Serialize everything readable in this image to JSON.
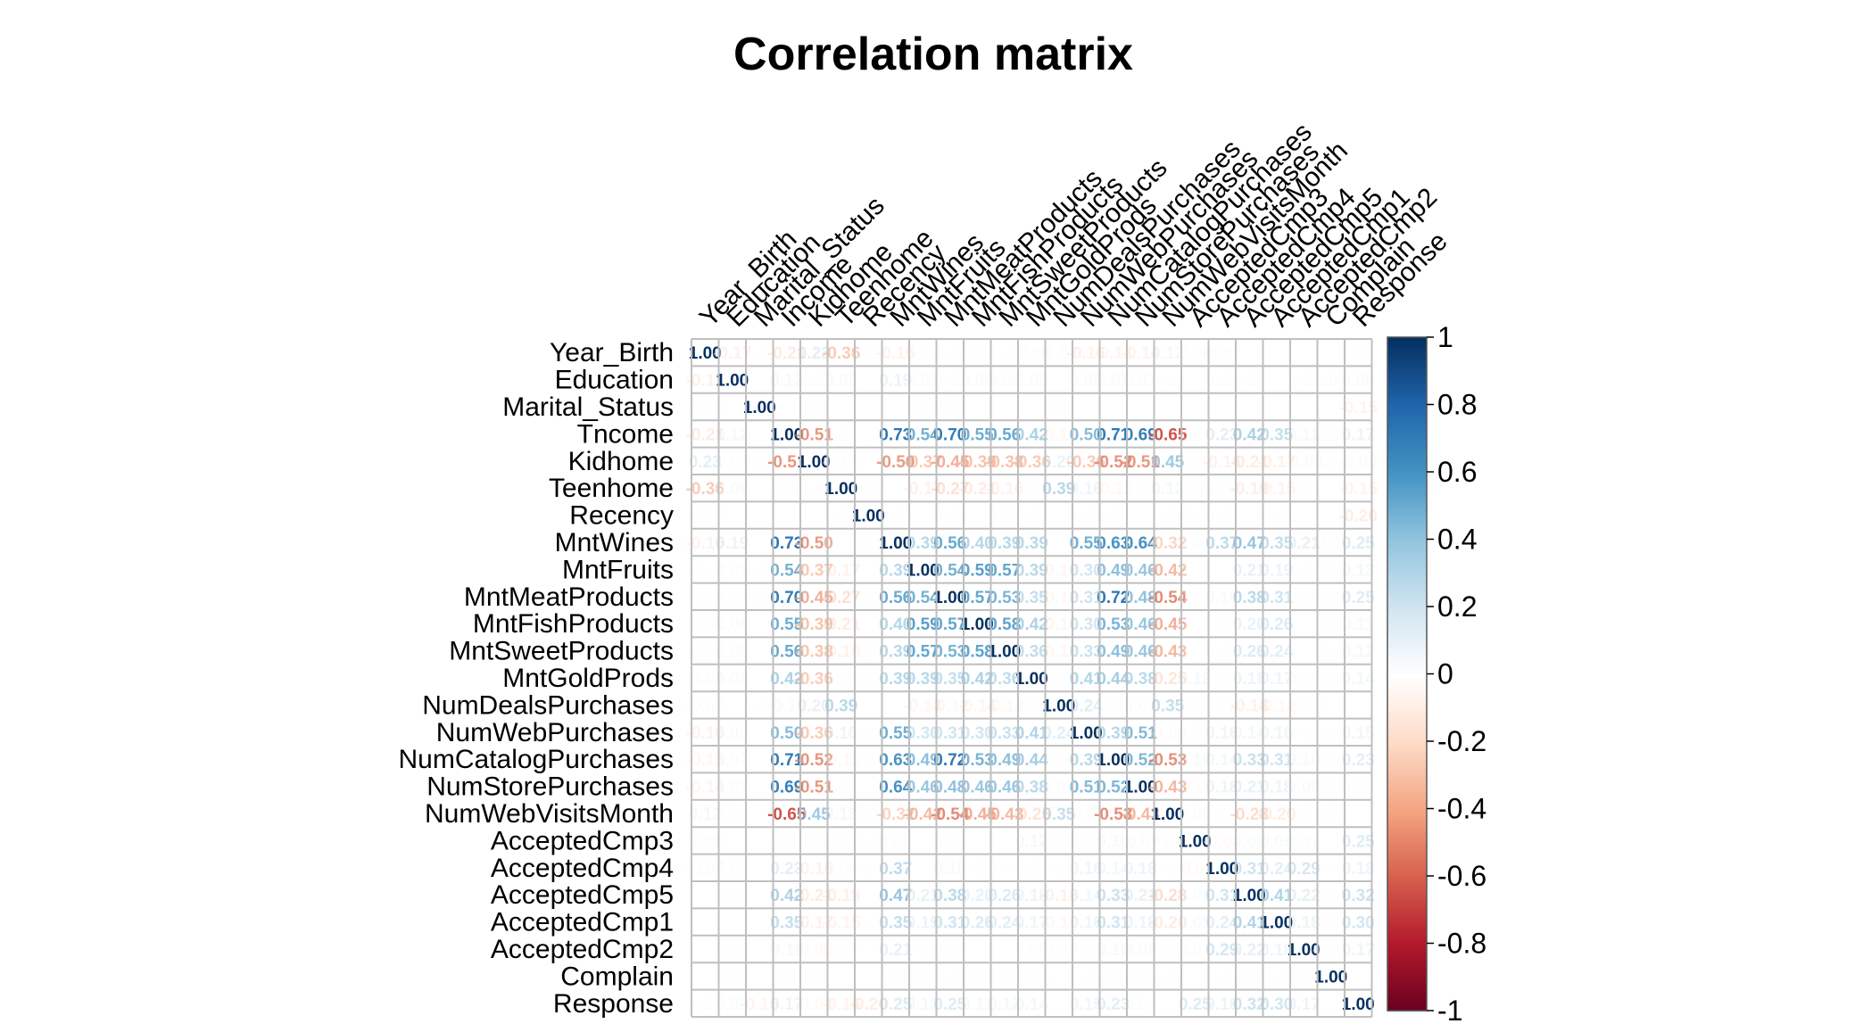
{
  "chart_data": {
    "type": "heatmap",
    "title": "Correlation matrix",
    "variables": [
      "Year_Birth",
      "Education",
      "Marital_Status",
      "Income",
      "Kidhome",
      "Teenhome",
      "Recency",
      "MntWines",
      "MntFruits",
      "MntMeatProducts",
      "MntFishProducts",
      "MntSweetProducts",
      "MntGoldProds",
      "NumDealsPurchases",
      "NumWebPurchases",
      "NumCatalogPurchases",
      "NumStorePurchases",
      "NumWebVisitsMonth",
      "AcceptedCmp3",
      "AcceptedCmp4",
      "AcceptedCmp5",
      "AcceptedCmp1",
      "AcceptedCmp2",
      "Complain",
      "Response"
    ],
    "row_labels": [
      "Year_Birth",
      "Education",
      "Marital_Status",
      "Tncome",
      "Kidhome",
      "Teenhome",
      "Recency",
      "MntWines",
      "MntFruits",
      "MntMeatProducts",
      "MntFishProducts",
      "MntSweetProducts",
      "MntGoldProds",
      "NumDealsPurchases",
      "NumWebPurchases",
      "NumCatalogPurchases",
      "NumStorePurchases",
      "NumWebVisitsMonth",
      "AcceptedCmp3",
      "AcceptedCmp4",
      "AcceptedCmp5",
      "AcceptedCmp1",
      "AcceptedCmp2",
      "Complain",
      "Response"
    ],
    "matrix": [
      [
        1.0,
        -0.17,
        0.02,
        -0.21,
        0.23,
        -0.36,
        -0.02,
        -0.16,
        -0.02,
        -0.03,
        -0.04,
        -0.02,
        -0.06,
        -0.07,
        -0.16,
        -0.13,
        -0.14,
        0.12,
        0.06,
        -0.07,
        0.01,
        0.01,
        0.01,
        0.0,
        0.02
      ],
      [
        -0.17,
        1.0,
        0.01,
        0.12,
        0.05,
        0.09,
        0.0,
        0.19,
        0.07,
        0.03,
        0.08,
        0.06,
        0.08,
        0.01,
        0.09,
        0.07,
        0.07,
        0.02,
        0.01,
        0.05,
        0.03,
        0.01,
        0.02,
        0.04,
        0.08
      ],
      [
        0.02,
        0.01,
        1.0,
        0.01,
        0.02,
        0.01,
        0.0,
        0.01,
        0.02,
        0.02,
        0.01,
        0.01,
        0.01,
        0.02,
        0.01,
        0.01,
        0.01,
        0.01,
        0.01,
        0.01,
        0.01,
        0.01,
        0.01,
        0.01,
        -0.15
      ],
      [
        -0.21,
        0.12,
        0.01,
        1.0,
        -0.51,
        0.03,
        0.01,
        0.73,
        0.54,
        0.7,
        0.55,
        0.56,
        0.42,
        -0.1,
        0.5,
        0.71,
        0.69,
        -0.65,
        -0.02,
        0.23,
        0.42,
        0.35,
        0.11,
        -0.03,
        0.17
      ],
      [
        0.23,
        0.05,
        0.02,
        -0.51,
        1.0,
        -0.04,
        0.01,
        -0.5,
        -0.37,
        -0.45,
        -0.39,
        -0.38,
        -0.36,
        0.2,
        -0.36,
        -0.52,
        -0.51,
        0.45,
        0.02,
        -0.16,
        -0.21,
        -0.17,
        -0.08,
        0.04,
        -0.08
      ],
      [
        -0.36,
        0.09,
        0.01,
        0.03,
        -0.04,
        1.0,
        0.02,
        0.01,
        -0.17,
        -0.27,
        -0.21,
        -0.16,
        -0.02,
        0.39,
        0.16,
        -0.11,
        0.05,
        0.13,
        -0.04,
        0.04,
        -0.19,
        -0.15,
        -0.02,
        0.01,
        -0.15
      ],
      [
        -0.02,
        0.0,
        0.0,
        0.01,
        0.01,
        0.02,
        1.0,
        0.02,
        0.01,
        0.02,
        0.0,
        0.02,
        0.02,
        0.0,
        -0.01,
        0.03,
        0.0,
        -0.02,
        -0.03,
        0.02,
        0.0,
        -0.02,
        0.0,
        0.01,
        -0.2
      ],
      [
        -0.16,
        0.19,
        0.01,
        0.73,
        -0.5,
        0.01,
        0.02,
        1.0,
        0.39,
        0.56,
        0.4,
        0.39,
        0.39,
        0.01,
        0.55,
        0.63,
        0.64,
        -0.32,
        0.06,
        0.37,
        0.47,
        0.35,
        0.21,
        -0.04,
        0.25
      ],
      [
        -0.02,
        0.07,
        0.02,
        0.54,
        -0.37,
        -0.17,
        0.01,
        0.39,
        1.0,
        0.54,
        0.59,
        0.57,
        0.39,
        -0.13,
        0.3,
        0.49,
        0.46,
        -0.42,
        0.01,
        0.01,
        0.21,
        0.19,
        -0.01,
        -0.01,
        0.13
      ],
      [
        -0.03,
        0.03,
        0.02,
        0.7,
        -0.45,
        -0.27,
        0.02,
        0.56,
        0.54,
        1.0,
        0.57,
        0.53,
        0.35,
        -0.12,
        0.31,
        0.72,
        0.48,
        -0.54,
        0.02,
        0.1,
        0.38,
        0.31,
        0.04,
        -0.02,
        0.25
      ],
      [
        -0.04,
        0.08,
        0.01,
        0.55,
        -0.39,
        -0.21,
        0.0,
        0.4,
        0.59,
        0.57,
        1.0,
        0.58,
        0.42,
        -0.14,
        0.3,
        0.53,
        0.46,
        -0.45,
        0.0,
        0.02,
        0.2,
        0.26,
        0.0,
        -0.02,
        0.11
      ],
      [
        -0.02,
        0.06,
        0.01,
        0.56,
        -0.38,
        -0.16,
        0.02,
        0.39,
        0.57,
        0.53,
        0.58,
        1.0,
        0.36,
        -0.12,
        0.33,
        0.49,
        0.46,
        -0.43,
        0.0,
        0.03,
        0.26,
        0.24,
        0.01,
        -0.02,
        0.12
      ],
      [
        -0.06,
        0.08,
        0.01,
        0.42,
        -0.36,
        -0.02,
        0.02,
        0.39,
        0.39,
        0.35,
        0.42,
        0.36,
        1.0,
        0.05,
        0.41,
        0.44,
        0.38,
        -0.25,
        0.12,
        0.02,
        0.18,
        0.17,
        0.05,
        -0.03,
        0.14
      ],
      [
        -0.07,
        0.01,
        0.02,
        -0.1,
        0.2,
        0.39,
        0.0,
        0.01,
        -0.13,
        -0.12,
        -0.14,
        -0.12,
        0.05,
        1.0,
        0.24,
        -0.01,
        0.07,
        0.35,
        -0.02,
        0.02,
        -0.18,
        -0.12,
        -0.04,
        0.0,
        0.0
      ],
      [
        -0.16,
        0.09,
        0.01,
        0.5,
        -0.36,
        0.16,
        -0.01,
        0.55,
        0.3,
        0.31,
        0.3,
        0.33,
        0.41,
        0.24,
        1.0,
        0.39,
        0.51,
        -0.06,
        0.04,
        0.16,
        0.14,
        0.16,
        0.03,
        -0.02,
        0.15
      ],
      [
        -0.13,
        0.07,
        0.01,
        0.71,
        -0.52,
        -0.11,
        0.03,
        0.63,
        0.49,
        0.72,
        0.53,
        0.49,
        0.44,
        -0.01,
        0.39,
        1.0,
        0.52,
        -0.53,
        0.1,
        0.14,
        0.33,
        0.31,
        0.1,
        -0.02,
        0.23
      ],
      [
        -0.14,
        0.07,
        0.01,
        0.69,
        -0.51,
        0.05,
        0.0,
        0.64,
        0.46,
        0.48,
        0.46,
        0.46,
        0.38,
        0.07,
        0.51,
        0.52,
        1.0,
        -0.43,
        -0.07,
        0.18,
        0.21,
        0.18,
        0.09,
        -0.02,
        0.04
      ],
      [
        0.12,
        0.02,
        0.01,
        -0.65,
        0.45,
        0.13,
        -0.02,
        -0.32,
        -0.42,
        -0.54,
        -0.45,
        -0.43,
        -0.25,
        0.35,
        -0.06,
        -0.53,
        -0.43,
        1.0,
        0.06,
        -0.03,
        -0.28,
        -0.2,
        -0.01,
        0.02,
        -0.0
      ],
      [
        0.06,
        0.01,
        0.01,
        -0.02,
        0.02,
        -0.04,
        -0.03,
        0.06,
        0.01,
        0.02,
        0.0,
        0.0,
        0.12,
        -0.02,
        0.04,
        0.1,
        -0.07,
        0.06,
        1.0,
        -0.08,
        0.08,
        0.09,
        0.07,
        0.01,
        0.25
      ],
      [
        -0.07,
        0.05,
        0.01,
        0.23,
        -0.16,
        0.04,
        0.02,
        0.37,
        0.01,
        0.1,
        0.02,
        0.03,
        0.02,
        0.02,
        0.16,
        0.14,
        0.18,
        -0.03,
        -0.08,
        1.0,
        0.31,
        0.24,
        0.29,
        -0.03,
        0.18
      ],
      [
        0.01,
        0.03,
        0.01,
        0.42,
        -0.21,
        -0.19,
        0.0,
        0.47,
        0.21,
        0.38,
        0.2,
        0.26,
        0.18,
        -0.18,
        0.14,
        0.33,
        0.21,
        -0.28,
        0.08,
        0.31,
        1.0,
        0.41,
        0.22,
        -0.01,
        0.32
      ],
      [
        0.01,
        0.01,
        0.01,
        0.35,
        -0.17,
        -0.15,
        -0.02,
        0.35,
        0.19,
        0.31,
        0.26,
        0.24,
        0.17,
        -0.12,
        0.16,
        0.31,
        0.18,
        -0.2,
        0.09,
        0.24,
        0.41,
        1.0,
        0.18,
        -0.03,
        0.3
      ],
      [
        0.01,
        0.02,
        0.01,
        0.11,
        -0.08,
        -0.02,
        0.0,
        0.21,
        -0.01,
        0.04,
        0.0,
        0.01,
        0.05,
        -0.04,
        0.03,
        0.1,
        0.09,
        -0.01,
        0.07,
        0.29,
        0.22,
        0.18,
        1.0,
        -0.01,
        0.17
      ],
      [
        0.0,
        0.04,
        0.01,
        -0.03,
        0.04,
        0.01,
        0.01,
        -0.04,
        -0.01,
        -0.02,
        -0.02,
        -0.02,
        -0.03,
        0.0,
        -0.02,
        -0.02,
        -0.02,
        0.02,
        0.01,
        -0.03,
        -0.01,
        -0.03,
        -0.01,
        1.0,
        0.0
      ],
      [
        0.02,
        0.08,
        -0.15,
        0.17,
        -0.08,
        -0.15,
        -0.2,
        0.25,
        0.13,
        0.25,
        0.11,
        0.12,
        0.14,
        0.0,
        0.15,
        0.23,
        0.04,
        -0.0,
        0.25,
        0.18,
        0.32,
        0.3,
        0.17,
        0.0,
        1.0
      ]
    ],
    "colorbar": {
      "min": -1,
      "max": 1,
      "ticks": [
        "1",
        "0.8",
        "0.6",
        "0.4",
        "0.2",
        "0",
        "-0.2",
        "-0.4",
        "-0.6",
        "-0.8",
        "-1"
      ]
    },
    "colors": {
      "negative": "#67001f",
      "neutral": "#ffffff",
      "positive": "#053061",
      "grid": "#bfbfbf"
    },
    "legend_position": "right"
  }
}
